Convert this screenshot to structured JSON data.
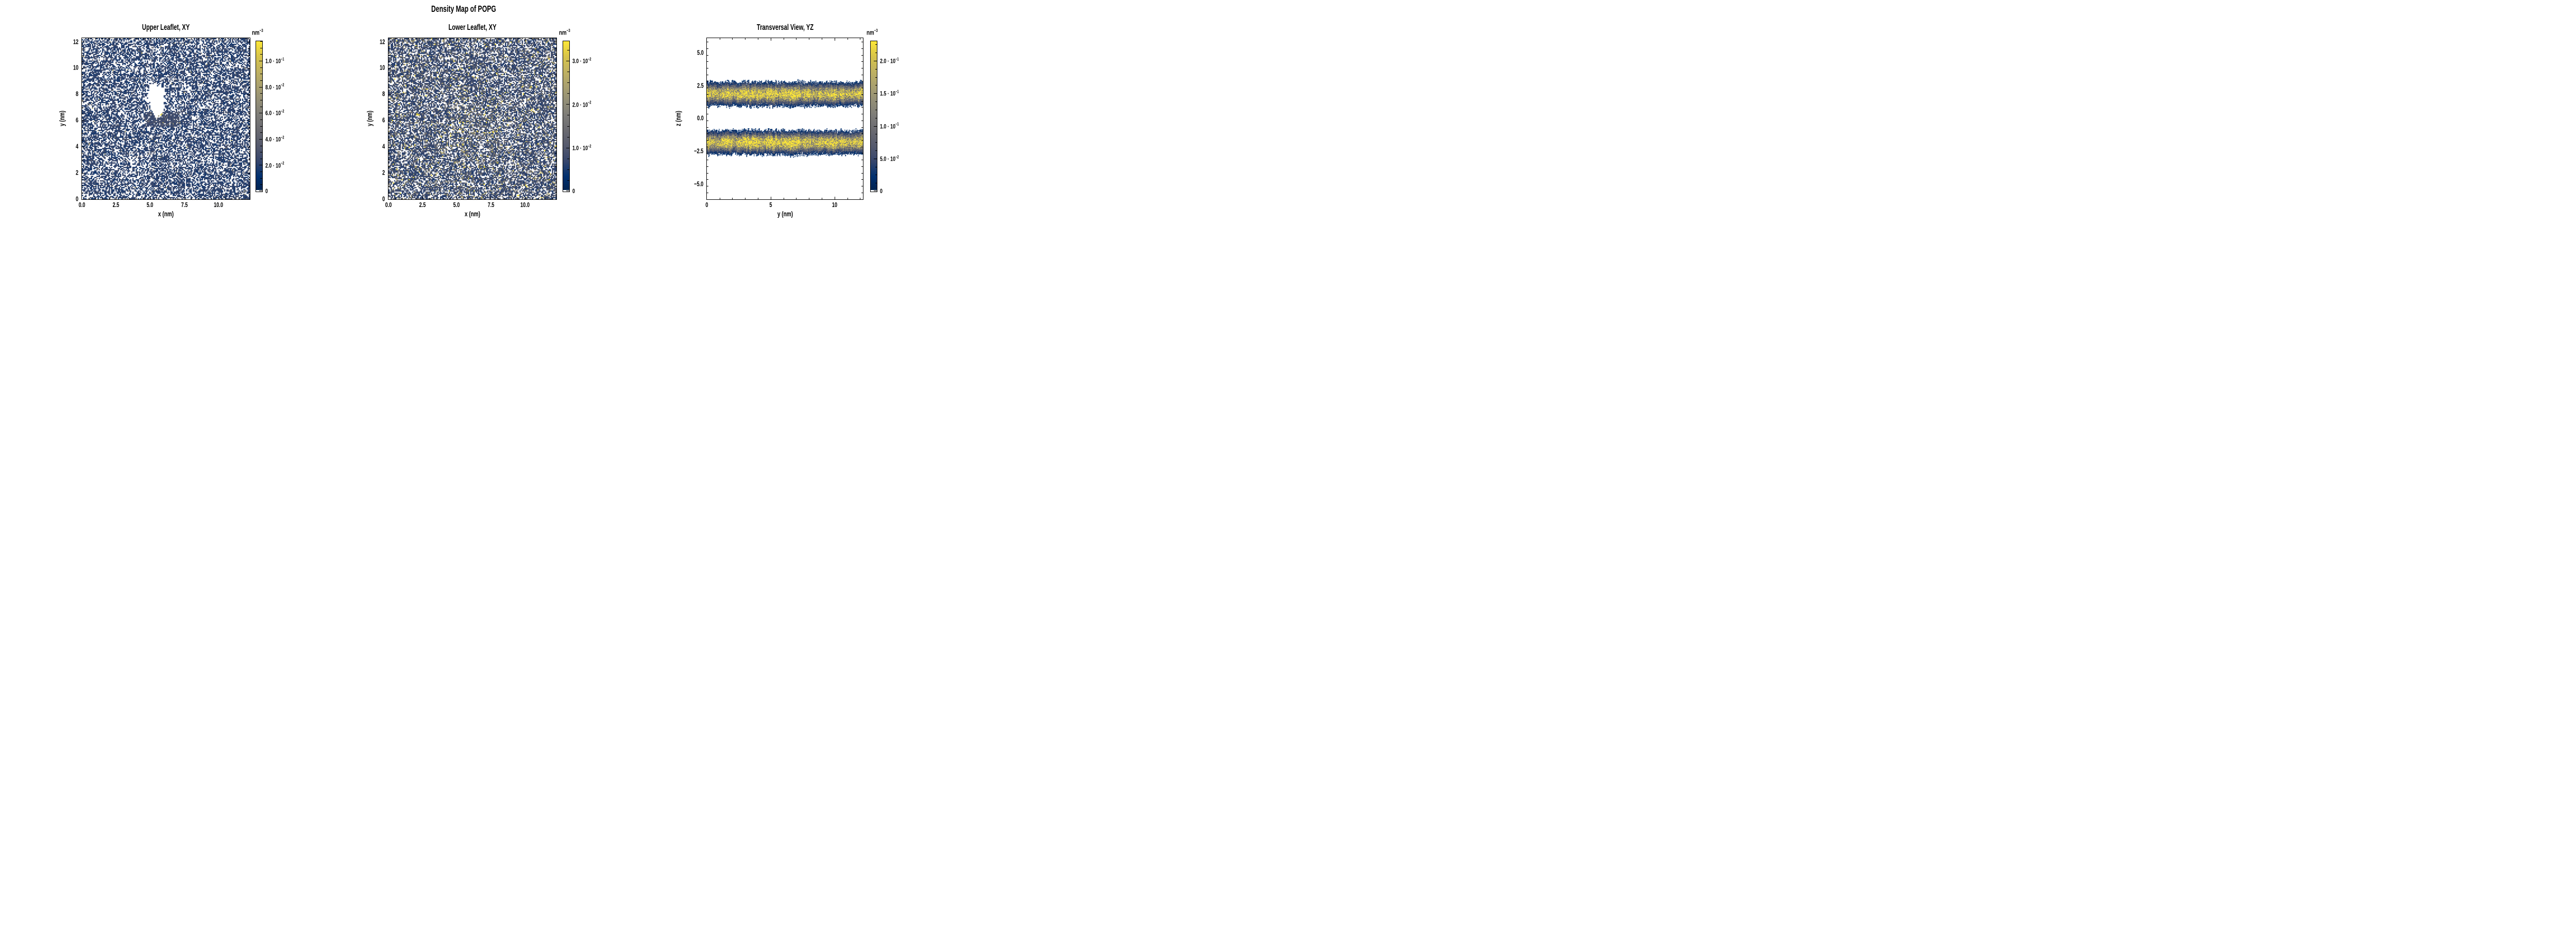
{
  "chart_data": {
    "type": "heatmap",
    "figure_title": "Density Map of POPG",
    "background": "#ffffff",
    "colorbar_unit": {
      "text": "nm",
      "exp": "−3"
    },
    "colormap": {
      "name": "cividis",
      "lowclip": "#ffffff",
      "stops": [
        [
          0,
          "#00224e"
        ],
        [
          0.1,
          "#00306f"
        ],
        [
          0.2,
          "#35456c"
        ],
        [
          0.3,
          "#54596d"
        ],
        [
          0.4,
          "#696970"
        ],
        [
          0.5,
          "#7c7b78"
        ],
        [
          0.6,
          "#928e77"
        ],
        [
          0.7,
          "#a9a06f"
        ],
        [
          0.8,
          "#c0b261"
        ],
        [
          0.9,
          "#d8c54a"
        ],
        [
          1,
          "#fde737"
        ]
      ]
    },
    "panels": [
      {
        "id": "upper-leaflet",
        "title": "Upper Leaflet, XY",
        "xlabel": "x (nm)",
        "ylabel": "y (nm)",
        "x_range": [
          0,
          12.3
        ],
        "y_range": [
          0,
          12.3
        ],
        "x_ticks": [
          {
            "v": 0,
            "t": "0.0"
          },
          {
            "v": 2.5,
            "t": "2.5"
          },
          {
            "v": 5,
            "t": "5.0"
          },
          {
            "v": 7.5,
            "t": "7.5"
          },
          {
            "v": 10,
            "t": "10.0"
          }
        ],
        "y_ticks": [
          {
            "v": 0,
            "t": "0"
          },
          {
            "v": 2,
            "t": "2"
          },
          {
            "v": 4,
            "t": "4"
          },
          {
            "v": 6,
            "t": "6"
          },
          {
            "v": 8,
            "t": "8"
          },
          {
            "v": 10,
            "t": "10"
          },
          {
            "v": 12,
            "t": "12"
          }
        ],
        "x_minor_step": 0.5,
        "y_minor_step": 0.5,
        "colorbar": {
          "vmax": 0.115,
          "minor_step": 0.005,
          "ticks": [
            {
              "v": 0.1,
              "m": "1.0",
              "e": "−1"
            },
            {
              "v": 0.08,
              "m": "8.0",
              "e": "−2"
            },
            {
              "v": 0.06,
              "m": "6.0",
              "e": "−2"
            },
            {
              "v": 0.04,
              "m": "4.0",
              "e": "−2"
            },
            {
              "v": 0.02,
              "m": "2.0",
              "e": "−2"
            },
            {
              "v": 0,
              "plain": "0"
            }
          ]
        },
        "description": "Sparse speckled density (single counts, dark navy on white) with an irregular white low-density pore centred near (5.5, 7.5) nm and a denser rim with a few high-density yellow bins just below the pore.",
        "gen": {
          "seed": 11,
          "nx": 150,
          "ny": 144,
          "fill": 0.58,
          "patch": 0.1,
          "base_t": [
            0.13,
            0.24
          ],
          "light_p": 0.055,
          "light_t": [
            0.3,
            0.45
          ],
          "tan_p": 0.004,
          "tan_t": [
            0.55,
            0.75
          ],
          "hole": {
            "lobes": [
              [
                5.45,
                7.9,
                0.58,
                0.85
              ],
              [
                5.55,
                6.95,
                0.42,
                0.75
              ]
            ],
            "wobble": 0.35,
            "fringe": 1.7
          },
          "cluster": [
            4.6,
            7.1,
            5.55,
            6.7,
            0.86,
            0.05
          ],
          "hotspots": [
            [
              5.75,
              6.42,
              1.0
            ],
            [
              5.88,
              6.52,
              0.8
            ],
            [
              5.58,
              6.35,
              0.62
            ],
            [
              4.95,
              6.85,
              0.55
            ]
          ]
        }
      },
      {
        "id": "lower-leaflet",
        "title": "Lower Leaflet, XY",
        "xlabel": "x (nm)",
        "ylabel": "y (nm)",
        "x_range": [
          0,
          12.3
        ],
        "y_range": [
          0,
          12.3
        ],
        "x_ticks": [
          {
            "v": 0,
            "t": "0.0"
          },
          {
            "v": 2.5,
            "t": "2.5"
          },
          {
            "v": 5,
            "t": "5.0"
          },
          {
            "v": 7.5,
            "t": "7.5"
          },
          {
            "v": 10,
            "t": "10.0"
          }
        ],
        "y_ticks": [
          {
            "v": 0,
            "t": "0"
          },
          {
            "v": 2,
            "t": "2"
          },
          {
            "v": 4,
            "t": "4"
          },
          {
            "v": 6,
            "t": "6"
          },
          {
            "v": 8,
            "t": "8"
          },
          {
            "v": 10,
            "t": "10"
          },
          {
            "v": 12,
            "t": "12"
          }
        ],
        "x_minor_step": 0.5,
        "y_minor_step": 0.5,
        "colorbar": {
          "vmax": 0.0345,
          "minor_step": 0.0025,
          "ticks": [
            {
              "v": 0.03,
              "m": "3.0",
              "e": "−2"
            },
            {
              "v": 0.02,
              "m": "2.0",
              "e": "−2"
            },
            {
              "v": 0.01,
              "m": "1.0",
              "e": "−2"
            },
            {
              "v": 0,
              "plain": "0"
            }
          ]
        },
        "description": "Denser speckled map mixing navy, slate-gray and tan bins with rare bright-yellow bins; slightly denser toward the centre, no pore.",
        "gen": {
          "seed": 22,
          "nx": 150,
          "ny": 144,
          "fill": 0.66,
          "patch": 0.08,
          "mix": [
            [
              0.72,
              0.15,
              0.26
            ],
            [
              0.2,
              0.36,
              0.52
            ],
            [
              0.06,
              0.56,
              0.78
            ],
            [
              0.012,
              0.88,
              1.0
            ]
          ],
          "center": [
            6.6,
            5.2,
            3.8,
            0.35
          ]
        }
      },
      {
        "id": "transversal",
        "title": "Transversal View, YZ",
        "xlabel": "y (nm)",
        "ylabel": "z (nm)",
        "x_range": [
          0,
          12.2
        ],
        "y_range": [
          -6.15,
          6.15
        ],
        "x_ticks": [
          {
            "v": 0,
            "t": "0"
          },
          {
            "v": 5,
            "t": "5"
          },
          {
            "v": 10,
            "t": "10"
          }
        ],
        "y_ticks": [
          {
            "v": 5,
            "t": "5.0"
          },
          {
            "v": 2.5,
            "t": "2.5"
          },
          {
            "v": 0,
            "t": "0.0"
          },
          {
            "v": -2.5,
            "t": "−2.5"
          },
          {
            "v": -5,
            "t": "−5.0"
          }
        ],
        "x_minor_step": 1,
        "y_minor_step": 0.5,
        "colorbar": {
          "vmax": 0.23,
          "minor_step": 0.0125,
          "ticks": [
            {
              "v": 0.2,
              "m": "2.0",
              "e": "−1"
            },
            {
              "v": 0.15,
              "m": "1.5",
              "e": "−1"
            },
            {
              "v": 0.1,
              "m": "1.0",
              "e": "−1"
            },
            {
              "v": 0.05,
              "m": "5.0",
              "e": "−2"
            },
            {
              "v": 0,
              "plain": "0"
            }
          ]
        },
        "description": "Two horizontal leaflet bands: upper band centred near z = +1.9 nm, lower band near z = −1.8 nm; navy edges grading to tan/yellow high-density cores (~0.2 nm⁻³), white elsewhere.",
        "gen": {
          "seed": 33,
          "nx": 210,
          "ny": 220,
          "bands": [
            [
              1.88,
              0.6,
              1.0
            ],
            [
              -1.82,
              0.6,
              1.0
            ]
          ],
          "thresh": 0.085,
          "rmin": 0.45,
          "rspan": 0.95,
          "patch": 0.18,
          "zjit": 0.22
        }
      }
    ]
  }
}
